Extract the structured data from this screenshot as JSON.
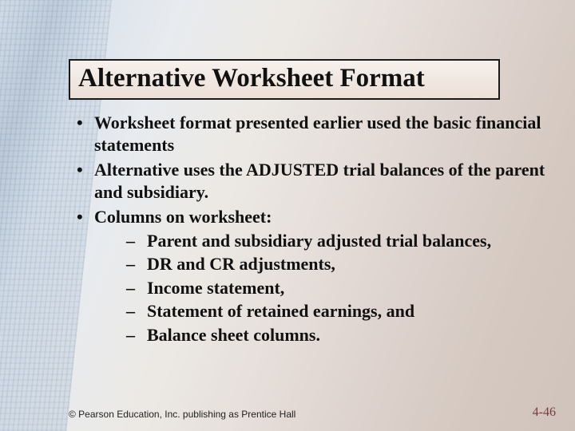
{
  "title": "Alternative Worksheet Format",
  "bullets": [
    {
      "text": "Worksheet format presented earlier used the basic financial statements"
    },
    {
      "text": "Alternative uses the ADJUSTED trial balances of the parent and subsidiary."
    },
    {
      "text": "Columns on worksheet:",
      "subs": [
        "Parent and subsidiary adjusted trial balances,",
        "DR and CR adjustments,",
        "Income statement,",
        "Statement of retained earnings, and",
        "Balance sheet columns."
      ]
    }
  ],
  "footer": "© Pearson Education, Inc. publishing as Prentice Hall",
  "slidenum": "4-46",
  "colors": {
    "title_border": "#1a1a1a",
    "text": "#111111",
    "slidenum": "#7a3a3a"
  }
}
